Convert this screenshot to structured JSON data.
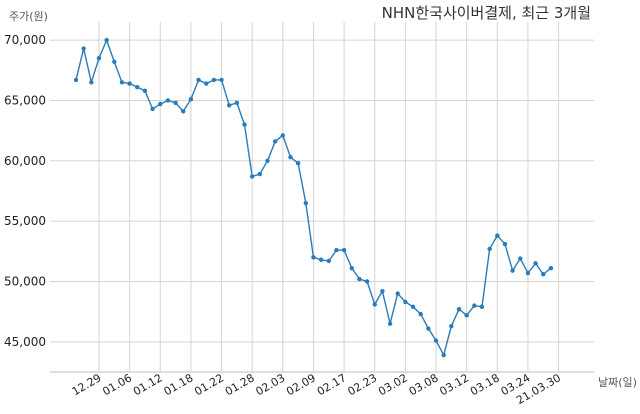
{
  "chart_data": {
    "type": "line",
    "title": "NHN한국사이버결제, 최근 3개월",
    "ylabel": "주가(원)",
    "xlabel": "날짜(일)",
    "ylim": [
      42500,
      71500
    ],
    "yticks": [
      45000,
      50000,
      55000,
      60000,
      65000,
      70000
    ],
    "ytick_labels": [
      "45,000",
      "50,000",
      "55,000",
      "60,000",
      "65,000",
      "70,000"
    ],
    "x_tick_labels": [
      "12.29",
      "01.06",
      "01.12",
      "01.18",
      "01.22",
      "01.28",
      "02.03",
      "02.09",
      "02.17",
      "02.23",
      "03.02",
      "03.08",
      "03.12",
      "03.18",
      "03.24",
      "21.03.30"
    ],
    "x_tick_index": [
      3,
      7,
      11,
      15,
      19,
      23,
      27,
      31,
      35,
      39,
      43,
      47,
      51,
      55,
      59,
      63
    ],
    "grid": true,
    "color": "#2b7bb9",
    "values": [
      66700,
      69300,
      66500,
      68500,
      70000,
      68200,
      66500,
      66400,
      66100,
      65800,
      64300,
      64700,
      65000,
      64800,
      64100,
      65100,
      66700,
      66400,
      66700,
      66700,
      64600,
      64800,
      63000,
      58700,
      58900,
      60000,
      61600,
      62100,
      60300,
      59800,
      56500,
      52000,
      51800,
      51700,
      52600,
      52600,
      51100,
      50200,
      50000,
      48100,
      49200,
      46500,
      49000,
      48300,
      47900,
      47300,
      46100,
      45100,
      43900,
      46300,
      47700,
      47200,
      48000,
      47900,
      52700,
      53800,
      53100,
      50900,
      51900,
      50700,
      51500,
      50600,
      51100
    ]
  }
}
